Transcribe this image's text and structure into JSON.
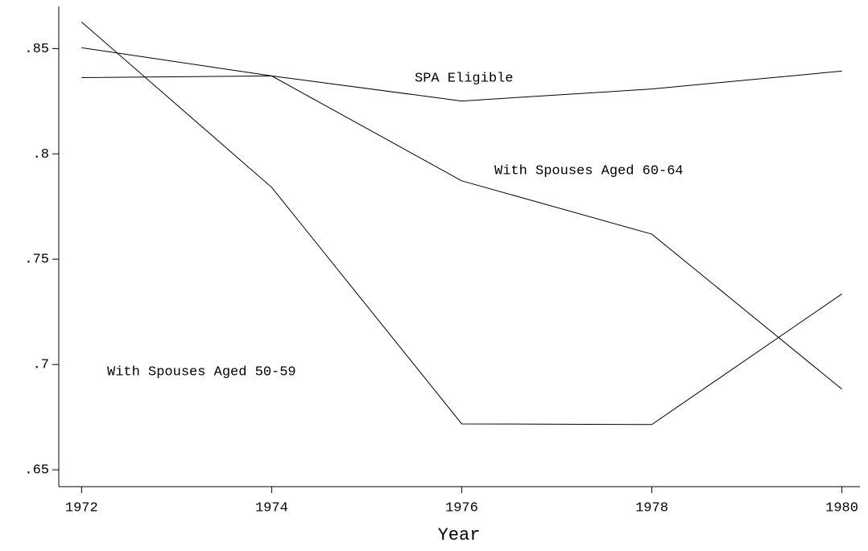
{
  "chart_data": {
    "type": "line",
    "x": [
      1972,
      1974,
      1976,
      1978,
      1980
    ],
    "series": [
      {
        "name": "SPA Eligible",
        "color": "#000000",
        "values": [
          0.8362,
          0.837,
          0.8251,
          0.8308,
          0.8393
        ]
      },
      {
        "name": "With Spouses Aged 60-64",
        "color": "#000000",
        "values": [
          0.8504,
          0.837,
          0.7872,
          0.7619,
          0.6883
        ]
      },
      {
        "name": "With Spouses Aged 50-59",
        "color": "#000000",
        "values": [
          0.8626,
          0.7841,
          0.6718,
          0.6715,
          0.7335
        ]
      }
    ],
    "xlabel": "Year",
    "xlim": [
      1971.76,
      1980.19
    ],
    "xticks": [
      1972,
      1974,
      1976,
      1978,
      1980
    ],
    "ylim": [
      0.642,
      0.87
    ],
    "yticks": [
      {
        "value": 0.65,
        "label": ".65"
      },
      {
        "value": 0.7,
        "label": ".7"
      },
      {
        "value": 0.75,
        "label": ".75"
      },
      {
        "value": 0.8,
        "label": ".8"
      },
      {
        "value": 0.85,
        "label": ".85"
      }
    ],
    "grid": false
  }
}
